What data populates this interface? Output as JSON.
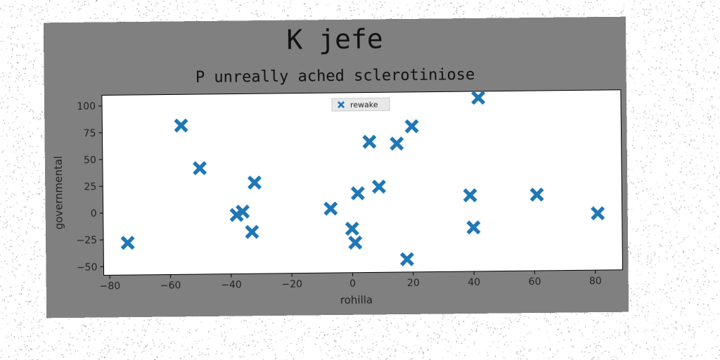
{
  "suptitle": "K jefe",
  "chart_data": {
    "type": "scatter",
    "title": "P unreally ached sclerotiniose",
    "xlabel": "rohilla",
    "ylabel": "governmental",
    "xlim": [
      -82,
      89
    ],
    "ylim": [
      -58,
      110
    ],
    "xticks": [
      -80,
      -60,
      -40,
      -20,
      0,
      20,
      40,
      60,
      80
    ],
    "yticks": [
      -50,
      -25,
      0,
      25,
      50,
      75,
      100
    ],
    "grid": false,
    "legend_position": "top-center",
    "series": [
      {
        "name": "rewake",
        "marker": "X",
        "color": "#1f77b4",
        "points": [
          {
            "x": -74,
            "y": -28
          },
          {
            "x": -56,
            "y": 81
          },
          {
            "x": -50,
            "y": 41
          },
          {
            "x": -38,
            "y": -3
          },
          {
            "x": -36,
            "y": 0
          },
          {
            "x": -32,
            "y": 27
          },
          {
            "x": -33,
            "y": -19
          },
          {
            "x": -7,
            "y": 2
          },
          {
            "x": 0,
            "y": -17
          },
          {
            "x": 1,
            "y": -30
          },
          {
            "x": 2,
            "y": 16
          },
          {
            "x": 6,
            "y": 64
          },
          {
            "x": 9,
            "y": 22
          },
          {
            "x": 15,
            "y": 62
          },
          {
            "x": 18,
            "y": -46
          },
          {
            "x": 20,
            "y": 78
          },
          {
            "x": 39,
            "y": 13
          },
          {
            "x": 40,
            "y": -17
          },
          {
            "x": 42,
            "y": 104
          },
          {
            "x": 61,
            "y": 13
          },
          {
            "x": 81,
            "y": -5
          }
        ]
      }
    ]
  }
}
